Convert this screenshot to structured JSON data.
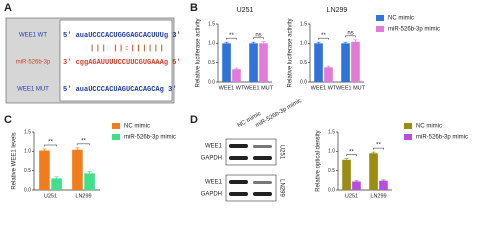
{
  "panel_labels": [
    "A",
    "B",
    "C",
    "D"
  ],
  "panel_a": {
    "rows": [
      {
        "label": "WEE1 WT",
        "sequence": "5' auaUCCCACUGGGAGCACUUUg 3'"
      },
      {
        "label": "miR-526b-3p",
        "sequence": "3' cggAGAUUUUCCUUCGUGAAAg 5'"
      },
      {
        "label": "WEE1 MUT",
        "sequence": "5' auaUCCCACUAGUCACAGCAg 3'"
      }
    ],
    "pairing": "||| ||:||||||"
  },
  "blot": {
    "columns": [
      "NC mimic",
      "miR-526b-3p mimic"
    ],
    "rows": [
      "WEE1",
      "GAPDH",
      "WEE1",
      "GAPDH"
    ],
    "cell_lines": [
      "U251",
      "LN299"
    ]
  },
  "chart_data": [
    {
      "type": "bar",
      "title": "U251",
      "y_label": "Relative luciferase activity",
      "categories": [
        "WEE1 WT",
        "WEE1 MUT"
      ],
      "series": [
        {
          "color": "#2f74d6",
          "values": [
            1.0,
            1.0
          ],
          "errors": [
            0.03,
            0.03
          ]
        },
        {
          "color": "#e37ad8",
          "values": [
            0.33,
            1.0
          ],
          "errors": [
            0.03,
            0.04
          ]
        }
      ],
      "significance": [
        "**",
        "ns"
      ],
      "ylim": [
        0,
        1.5
      ],
      "yticks": [
        {
          "value": 0,
          "label": "0.0"
        },
        0.5,
        {
          "value": 1,
          "label": "1.0"
        },
        1.5
      ]
    },
    {
      "type": "bar",
      "title": "LN299",
      "y_label": "Relative luciferase activity",
      "categories": [
        "WEE1 WT",
        "WEE1 MUT"
      ],
      "series": [
        {
          "name": "NC mimic",
          "color": "#2f74d6",
          "values": [
            1.0,
            1.0
          ],
          "errors": [
            0.03,
            0.03
          ]
        },
        {
          "name": "miR-526b-3p mimic",
          "color": "#e37ad8",
          "values": [
            0.38,
            1.04
          ],
          "errors": [
            0.03,
            0.05
          ]
        }
      ],
      "significance": [
        "**",
        "ns"
      ],
      "legend": "right",
      "ylim": [
        0,
        1.5
      ],
      "yticks": [
        {
          "value": 0,
          "label": "0.0"
        },
        0.5,
        {
          "value": 1,
          "label": "1.0"
        },
        1.5
      ]
    },
    {
      "type": "bar",
      "y_label": "Relative WEE1 levels",
      "categories": [
        "U251",
        "LN299"
      ],
      "series": [
        {
          "name": "NC mimic",
          "color": "#f07c1c",
          "values": [
            1.02,
            1.04
          ],
          "errors": [
            0.04,
            0.05
          ]
        },
        {
          "name": "miR-526b-3p mimic",
          "color": "#3fe08c",
          "values": [
            0.3,
            0.43
          ],
          "errors": [
            0.04,
            0.05
          ]
        }
      ],
      "significance": [
        "**",
        "**"
      ],
      "legend": "right",
      "ylim": [
        0,
        1.5
      ],
      "yticks": [
        {
          "value": 0,
          "label": "0.0"
        },
        0.5,
        {
          "value": 1,
          "label": "1.0"
        },
        1.5
      ]
    },
    {
      "type": "bar",
      "y_label": "Relative optical density",
      "categories": [
        "U251",
        "LN299"
      ],
      "series": [
        {
          "name": "NC mimic",
          "color": "#9c8c12",
          "values": [
            0.78,
            0.95
          ],
          "errors": [
            0.03,
            0.03
          ]
        },
        {
          "name": "miR-526b-3p mimic",
          "color": "#b64fe0",
          "values": [
            0.22,
            0.24
          ],
          "errors": [
            0.02,
            0.02
          ]
        }
      ],
      "significance": [
        "**",
        "**"
      ],
      "legend": "right",
      "ylim": [
        0,
        1.5
      ],
      "yticks": [
        {
          "value": 0,
          "label": "0.0"
        },
        0.5,
        {
          "value": 1,
          "label": "1.0"
        },
        1.5
      ]
    }
  ]
}
